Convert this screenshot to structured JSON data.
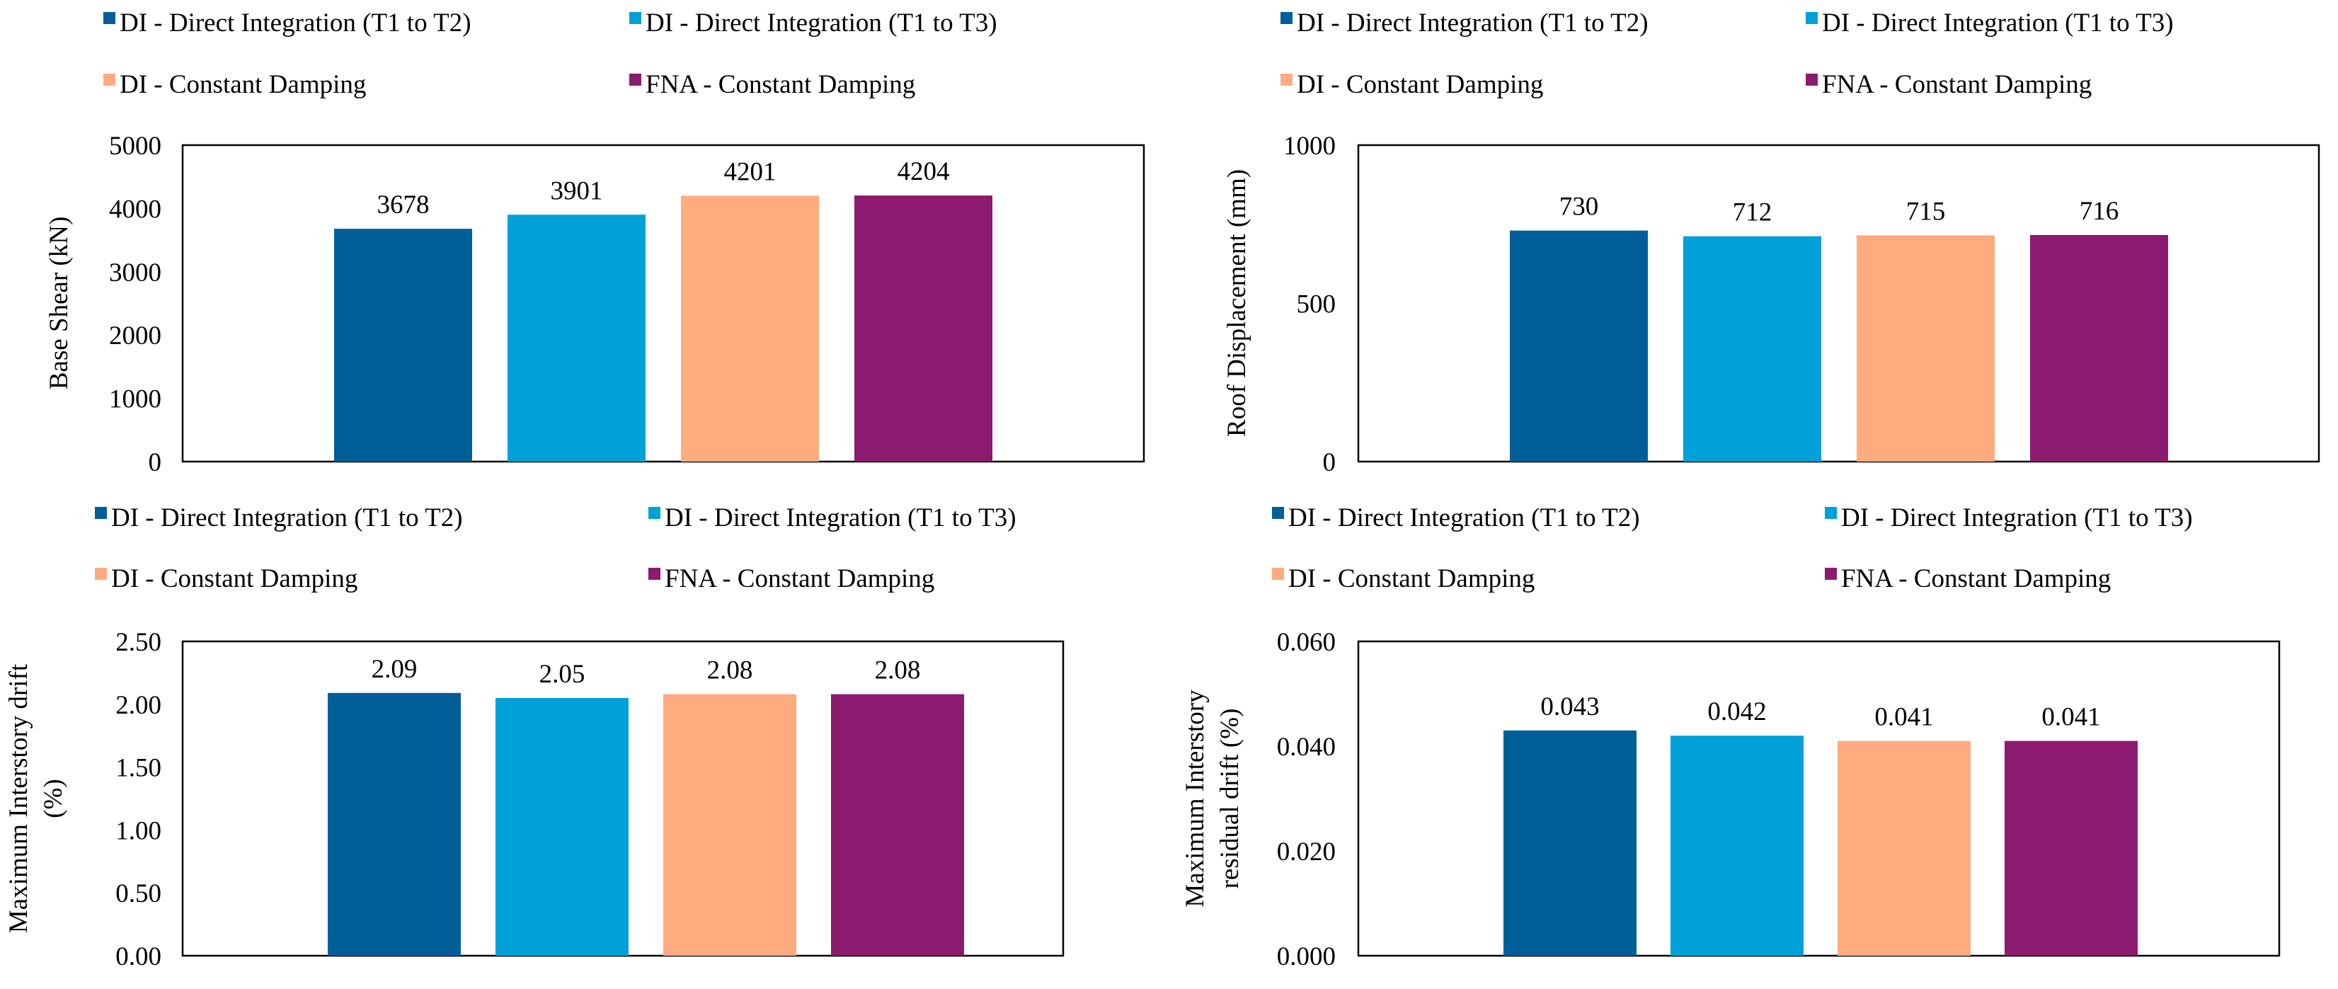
{
  "colors": {
    "di_t1_t2": "#005F99",
    "di_t1_t3": "#00A0D8",
    "di_constant": "#FFAB80",
    "fna_constant": "#8C1A6E",
    "axis": "#000000"
  },
  "legend": {
    "items": [
      {
        "key": "di_t1_t2",
        "label": "DI - Direct Integration (T1 to T2)"
      },
      {
        "key": "di_t1_t3",
        "label": "DI - Direct Integration (T1 to T3)"
      },
      {
        "key": "di_constant",
        "label": "DI - Constant Damping"
      },
      {
        "key": "fna_constant",
        "label": "FNA - Constant Damping"
      }
    ]
  },
  "chart_data": [
    {
      "type": "bar",
      "title": "",
      "ylabel": [
        "Base Shear (kN)"
      ],
      "ylim": [
        0,
        5000
      ],
      "yticks": [
        "0",
        "1000",
        "2000",
        "3000",
        "4000",
        "5000"
      ],
      "series": [
        {
          "name": "DI - Direct Integration (T1 to T2)",
          "value": 3678,
          "label": "3678"
        },
        {
          "name": "DI - Direct Integration (T1 to T3)",
          "value": 3901,
          "label": "3901"
        },
        {
          "name": "DI - Constant Damping",
          "value": 4201,
          "label": "4201"
        },
        {
          "name": "FNA - Constant Damping",
          "value": 4204,
          "label": "4204"
        }
      ]
    },
    {
      "type": "bar",
      "title": "",
      "ylabel": [
        "Roof Displacement (mm)"
      ],
      "ylim": [
        0,
        1000
      ],
      "yticks": [
        "0",
        "500",
        "1000"
      ],
      "series": [
        {
          "name": "DI - Direct Integration (T1 to T2)",
          "value": 730,
          "label": "730"
        },
        {
          "name": "DI - Direct Integration (T1 to T3)",
          "value": 712,
          "label": "712"
        },
        {
          "name": "DI - Constant Damping",
          "value": 715,
          "label": "715"
        },
        {
          "name": "FNA - Constant Damping",
          "value": 716,
          "label": "716"
        }
      ]
    },
    {
      "type": "bar",
      "title": "",
      "ylabel": [
        "Maximum Interstory drift",
        "(%)"
      ],
      "ylim": [
        0,
        2.5
      ],
      "yticks": [
        "0.00",
        "0.50",
        "1.00",
        "1.50",
        "2.00",
        "2.50"
      ],
      "series": [
        {
          "name": "DI - Direct Integration (T1 to T2)",
          "value": 2.09,
          "label": "2.09"
        },
        {
          "name": "DI - Direct Integration (T1 to T3)",
          "value": 2.05,
          "label": "2.05"
        },
        {
          "name": "DI - Constant Damping",
          "value": 2.08,
          "label": "2.08"
        },
        {
          "name": "FNA - Constant Damping",
          "value": 2.08,
          "label": "2.08"
        }
      ]
    },
    {
      "type": "bar",
      "title": "",
      "ylabel": [
        "Maximum Interstory",
        "residual drift (%)"
      ],
      "ylim": [
        0,
        0.06
      ],
      "yticks": [
        "0.000",
        "0.020",
        "0.040",
        "0.060"
      ],
      "series": [
        {
          "name": "DI - Direct Integration (T1 to T2)",
          "value": 0.043,
          "label": "0.043"
        },
        {
          "name": "DI - Direct Integration (T1 to T3)",
          "value": 0.042,
          "label": "0.042"
        },
        {
          "name": "DI - Constant Damping",
          "value": 0.041,
          "label": "0.041"
        },
        {
          "name": "FNA - Constant Damping",
          "value": 0.041,
          "label": "0.041"
        }
      ]
    }
  ]
}
